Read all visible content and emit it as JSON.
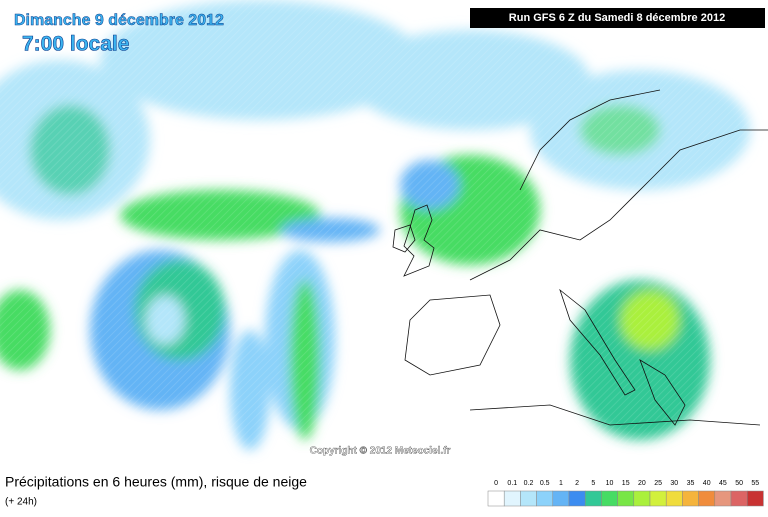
{
  "header": {
    "date": "Dimanche 9 décembre 2012",
    "time": "7:00 locale",
    "run": "Run GFS 6 Z du Samedi 8 décembre 2012"
  },
  "copyright": "Copyright © 2012 Meteociel.fr",
  "footer": {
    "title": "Précipitations en 6 heures (mm), risque de neige",
    "lead": "(+ 24h)"
  },
  "legend": [
    {
      "label": "0",
      "color": "#ffffff"
    },
    {
      "label": "0.1",
      "color": "#e1f5fe"
    },
    {
      "label": "0.2",
      "color": "#b4e6fa"
    },
    {
      "label": "0.5",
      "color": "#8cd2fa"
    },
    {
      "label": "1",
      "color": "#64b4f5"
    },
    {
      "label": "2",
      "color": "#3c8cf0"
    },
    {
      "label": "5",
      "color": "#32c896"
    },
    {
      "label": "10",
      "color": "#46dc64"
    },
    {
      "label": "15",
      "color": "#78e646"
    },
    {
      "label": "20",
      "color": "#aaf03c"
    },
    {
      "label": "25",
      "color": "#d2f03c"
    },
    {
      "label": "30",
      "color": "#f0dc3c"
    },
    {
      "label": "35",
      "color": "#f5b43c"
    },
    {
      "label": "40",
      "color": "#f08c3c"
    },
    {
      "label": "45",
      "color": "#e6967d"
    },
    {
      "label": "50",
      "color": "#dc6464"
    },
    {
      "label": "55",
      "color": "#c83232"
    }
  ]
}
